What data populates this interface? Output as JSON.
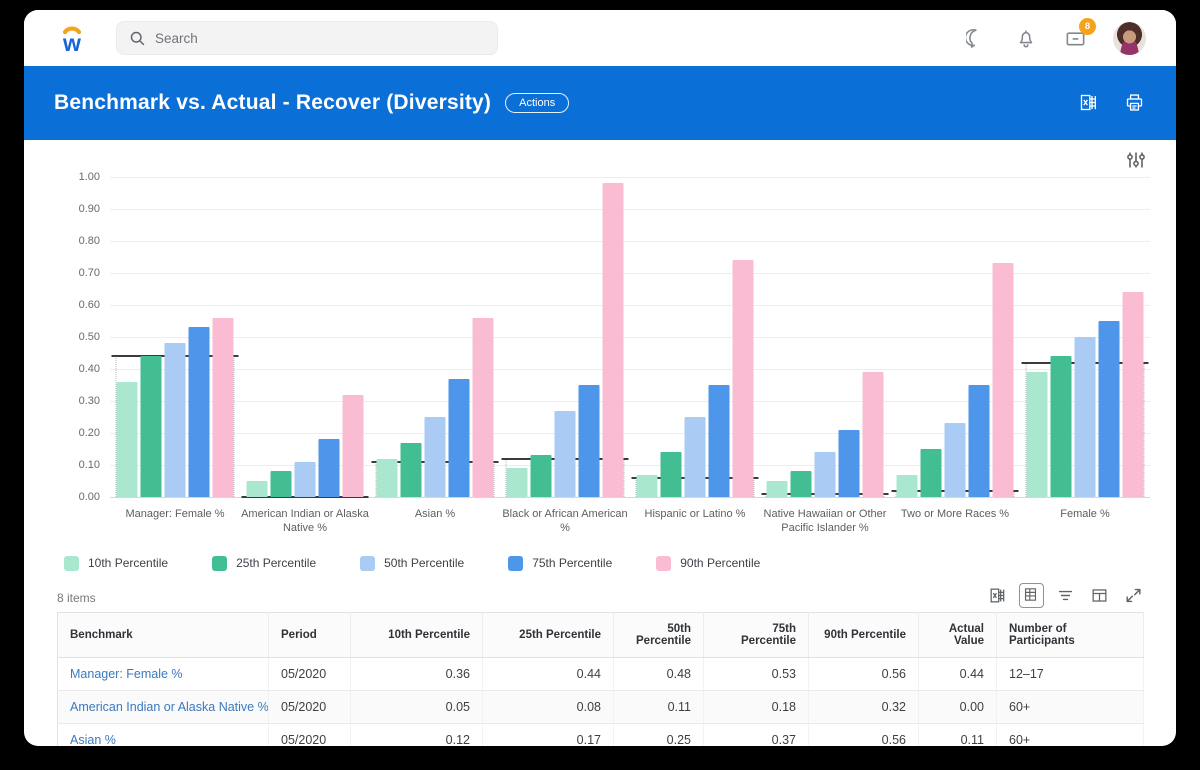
{
  "topbar": {
    "search_placeholder": "Search",
    "inbox_badge": "8"
  },
  "header": {
    "title": "Benchmark vs. Actual - Recover (Diversity)",
    "actions_label": "Actions"
  },
  "chart_data": {
    "type": "bar",
    "title": "Benchmark vs. Actual - Recover (Diversity)",
    "ylim": [
      0,
      1.0
    ],
    "ytick_step": 0.1,
    "yticks": [
      "1.00",
      "0.90",
      "0.80",
      "0.70",
      "0.60",
      "0.50",
      "0.40",
      "0.30",
      "0.20",
      "0.10",
      "0.00"
    ],
    "grid": true,
    "legend_position": "bottom",
    "categories": [
      "Manager: Female %",
      "American Indian or Alaska Native %",
      "Asian %",
      "Black or African American %",
      "Hispanic or Latino %",
      "Native Hawaiian or Other Pacific Islander %",
      "Two or More Races %",
      "Female %"
    ],
    "series": [
      {
        "name": "10th Percentile",
        "color": "#A9E8CF",
        "values": [
          0.36,
          0.05,
          0.12,
          0.09,
          0.07,
          0.05,
          0.07,
          0.39
        ]
      },
      {
        "name": "25th Percentile",
        "color": "#43BE92",
        "values": [
          0.44,
          0.08,
          0.17,
          0.13,
          0.14,
          0.08,
          0.15,
          0.44
        ]
      },
      {
        "name": "50th Percentile",
        "color": "#A9CBF4",
        "values": [
          0.48,
          0.11,
          0.25,
          0.27,
          0.25,
          0.14,
          0.23,
          0.5
        ]
      },
      {
        "name": "75th Percentile",
        "color": "#4D96EA",
        "values": [
          0.53,
          0.18,
          0.37,
          0.35,
          0.35,
          0.21,
          0.35,
          0.55
        ]
      },
      {
        "name": "90th Percentile",
        "color": "#F9BCD3",
        "values": [
          0.56,
          0.32,
          0.56,
          0.98,
          0.74,
          0.39,
          0.73,
          0.64
        ]
      }
    ],
    "actual_values": [
      0.44,
      0.0,
      0.11,
      0.12,
      0.06,
      0.01,
      0.02,
      0.42
    ],
    "actual_line_color": "#3a3b3e"
  },
  "table": {
    "items_label": "8 items",
    "columns": [
      "Benchmark",
      "Period",
      "10th Percentile",
      "25th Percentile",
      "50th Percentile",
      "75th Percentile",
      "90th Percentile",
      "Actual Value",
      "Number of Participants"
    ],
    "rows": [
      [
        "Manager: Female %",
        "05/2020",
        "0.36",
        "0.44",
        "0.48",
        "0.53",
        "0.56",
        "0.44",
        "12–17"
      ],
      [
        "American Indian or Alaska Native %",
        "05/2020",
        "0.05",
        "0.08",
        "0.11",
        "0.18",
        "0.32",
        "0.00",
        "60+"
      ],
      [
        "Asian %",
        "05/2020",
        "0.12",
        "0.17",
        "0.25",
        "0.37",
        "0.56",
        "0.11",
        "60+"
      ]
    ]
  },
  "colors": {
    "header_blue": "#0B6FD8",
    "badge_orange": "#F6A21E",
    "link_blue": "#3A7ABD"
  }
}
